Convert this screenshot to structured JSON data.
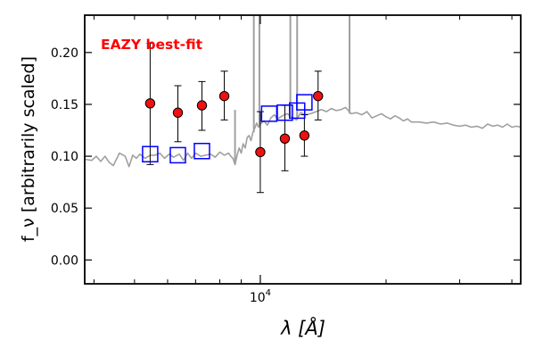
{
  "chart_data": {
    "type": "scatter",
    "title": "",
    "annotation": "EAZY best-fit",
    "annotation_color": "#ff0000",
    "xlabel": "λ [Å]",
    "ylabel": "f_ν [arbitrarily scaled]",
    "xscale": "log",
    "xlim": [
      3800,
      42000
    ],
    "ylim": [
      -0.023,
      0.236
    ],
    "xticks_major": [
      {
        "value": 10000,
        "label": "10^4"
      }
    ],
    "yticks": [
      {
        "value": 0.0,
        "label": "0.00"
      },
      {
        "value": 0.05,
        "label": "0.05"
      },
      {
        "value": 0.1,
        "label": "0.10"
      },
      {
        "value": 0.15,
        "label": "0.15"
      },
      {
        "value": 0.2,
        "label": "0.20"
      }
    ],
    "grid": false,
    "legend": "none",
    "colors": {
      "model_sed": "#a0a0a0",
      "observed_fill": "#ee1111",
      "observed_edge": "#000000",
      "model_photometry": "#0000ff",
      "axes": "#000000"
    },
    "series": [
      {
        "kind": "line",
        "x": [
          3800,
          3950,
          4050,
          4150,
          4250,
          4350,
          4450,
          4600,
          4750,
          4850,
          4950,
          5050,
          5150,
          5300,
          5450,
          5600,
          5750,
          5900,
          6050,
          6200,
          6400,
          6550,
          6700,
          6850,
          7000,
          7200,
          7400,
          7600,
          7800,
          8000,
          8200,
          8300,
          8400,
          8500,
          8600,
          8700,
          8800,
          8900,
          9000,
          9100,
          9200,
          9300,
          9400,
          9500,
          9600,
          9700,
          9800,
          9900,
          10000,
          10200,
          10400,
          10600,
          10800,
          11000,
          11300,
          11600,
          11900,
          12200,
          12500,
          12800,
          13200,
          13600,
          14000,
          14400,
          14800,
          15200,
          15600,
          16000,
          16500,
          17000,
          17500,
          18000,
          18500,
          19000,
          19500,
          20000,
          20500,
          21000,
          21500,
          22000,
          22500,
          23000,
          24000,
          25000,
          26000,
          27000,
          28000,
          29000,
          30000,
          31000,
          32000,
          33000,
          34000,
          35000,
          36000,
          37000,
          38000,
          39000,
          40000,
          41000,
          42000
        ],
        "y": [
          0.097,
          0.096,
          0.1,
          0.095,
          0.1,
          0.094,
          0.091,
          0.103,
          0.1,
          0.09,
          0.101,
          0.098,
          0.102,
          0.098,
          0.101,
          0.101,
          0.103,
          0.098,
          0.102,
          0.099,
          0.102,
          0.096,
          0.103,
          0.098,
          0.103,
          0.1,
          0.101,
          0.102,
          0.099,
          0.104,
          0.101,
          0.102,
          0.103,
          0.1,
          0.098,
          0.092,
          0.101,
          0.108,
          0.103,
          0.112,
          0.108,
          0.118,
          0.12,
          0.115,
          0.123,
          0.127,
          0.132,
          0.128,
          0.131,
          0.134,
          0.13,
          0.137,
          0.14,
          0.136,
          0.139,
          0.141,
          0.138,
          0.135,
          0.142,
          0.14,
          0.141,
          0.143,
          0.145,
          0.143,
          0.146,
          0.144,
          0.145,
          0.147,
          0.141,
          0.142,
          0.14,
          0.143,
          0.137,
          0.139,
          0.141,
          0.138,
          0.136,
          0.139,
          0.137,
          0.134,
          0.136,
          0.133,
          0.133,
          0.132,
          0.133,
          0.131,
          0.132,
          0.13,
          0.129,
          0.13,
          0.128,
          0.129,
          0.127,
          0.131,
          0.129,
          0.13,
          0.128,
          0.131,
          0.128,
          0.129,
          0.128
        ]
      },
      {
        "kind": "emission-lines",
        "x": [
          8700,
          9650,
          9950,
          11800,
          12250,
          16350
        ],
        "y_peak": [
          0.143,
          0.236,
          0.236,
          0.236,
          0.236,
          0.236
        ]
      },
      {
        "kind": "observed-photometry",
        "x": [
          5450,
          6350,
          7250,
          8200,
          10000,
          11450,
          12750,
          13750
        ],
        "y": [
          0.151,
          0.142,
          0.149,
          0.158,
          0.104,
          0.117,
          0.12,
          0.158
        ],
        "yerr_low": [
          0.092,
          0.114,
          0.125,
          0.135,
          0.065,
          0.086,
          0.1,
          0.135
        ],
        "yerr_high": [
          0.209,
          0.168,
          0.172,
          0.182,
          0.143,
          0.149,
          0.14,
          0.182
        ]
      },
      {
        "kind": "model-photometry",
        "x": [
          5450,
          6350,
          7250,
          10500,
          11450,
          12250,
          12750
        ],
        "y": [
          0.102,
          0.101,
          0.105,
          0.141,
          0.142,
          0.144,
          0.152
        ]
      }
    ]
  }
}
